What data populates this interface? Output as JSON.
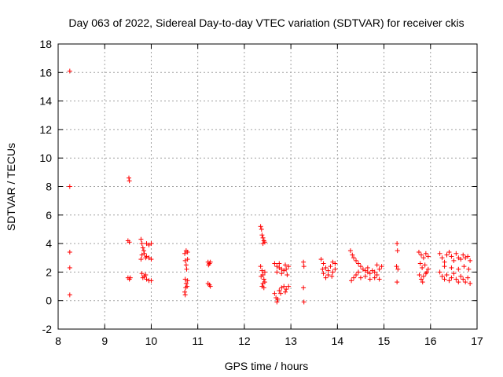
{
  "chart_data": {
    "type": "scatter",
    "title": "Day 063 of 2022, Sidereal Day-to-day VTEC variation (SDTVAR) for receiver ckis",
    "xlabel": "GPS time / hours",
    "ylabel": "SDTVAR / TECUs",
    "xlim": [
      8,
      17
    ],
    "ylim": [
      -2,
      18
    ],
    "xticks": [
      "8",
      "9",
      "10",
      "11",
      "12",
      "13",
      "14",
      "15",
      "16",
      "17"
    ],
    "yticks": [
      "-2",
      "0",
      "2",
      "4",
      "6",
      "8",
      "10",
      "12",
      "14",
      "16",
      "18"
    ],
    "grid": true,
    "marker": "+",
    "marker_color": "#ff0000",
    "series": [
      {
        "name": "SDTVAR",
        "points": [
          [
            8.25,
            16.1
          ],
          [
            8.25,
            8.0
          ],
          [
            8.25,
            3.4
          ],
          [
            8.25,
            2.3
          ],
          [
            8.25,
            0.4
          ],
          [
            9.52,
            8.6
          ],
          [
            9.53,
            8.4
          ],
          [
            9.5,
            4.2
          ],
          [
            9.53,
            4.1
          ],
          [
            9.5,
            1.6
          ],
          [
            9.53,
            1.5
          ],
          [
            9.55,
            1.6
          ],
          [
            9.78,
            4.3
          ],
          [
            9.8,
            4.0
          ],
          [
            9.82,
            3.7
          ],
          [
            9.85,
            3.3
          ],
          [
            9.88,
            3.0
          ],
          [
            9.8,
            3.2
          ],
          [
            9.78,
            2.9
          ],
          [
            9.84,
            3.5
          ],
          [
            9.9,
            4.0
          ],
          [
            9.95,
            3.9
          ],
          [
            10.0,
            4.0
          ],
          [
            9.95,
            3.0
          ],
          [
            10.0,
            2.9
          ],
          [
            9.9,
            3.1
          ],
          [
            9.8,
            1.9
          ],
          [
            9.82,
            1.6
          ],
          [
            9.85,
            1.7
          ],
          [
            9.9,
            1.5
          ],
          [
            9.95,
            1.4
          ],
          [
            10.0,
            1.4
          ],
          [
            9.88,
            1.8
          ],
          [
            10.72,
            3.3
          ],
          [
            10.75,
            3.5
          ],
          [
            10.78,
            3.4
          ],
          [
            10.73,
            2.8
          ],
          [
            10.75,
            2.5
          ],
          [
            10.76,
            2.2
          ],
          [
            10.78,
            2.9
          ],
          [
            10.73,
            1.5
          ],
          [
            10.75,
            1.2
          ],
          [
            10.74,
            0.9
          ],
          [
            10.72,
            0.6
          ],
          [
            10.73,
            0.4
          ],
          [
            10.77,
            1.0
          ],
          [
            10.78,
            1.4
          ],
          [
            11.22,
            2.7
          ],
          [
            11.25,
            2.6
          ],
          [
            11.27,
            2.7
          ],
          [
            11.23,
            2.5
          ],
          [
            11.22,
            1.2
          ],
          [
            11.25,
            1.1
          ],
          [
            11.27,
            1.0
          ],
          [
            12.35,
            5.2
          ],
          [
            12.37,
            5.0
          ],
          [
            12.38,
            4.6
          ],
          [
            12.4,
            4.4
          ],
          [
            12.42,
            4.2
          ],
          [
            12.44,
            4.1
          ],
          [
            12.4,
            4.0
          ],
          [
            12.35,
            2.4
          ],
          [
            12.38,
            2.1
          ],
          [
            12.4,
            1.8
          ],
          [
            12.42,
            1.5
          ],
          [
            12.4,
            1.2
          ],
          [
            12.38,
            1.0
          ],
          [
            12.42,
            0.9
          ],
          [
            12.44,
            1.3
          ],
          [
            12.36,
            1.7
          ],
          [
            12.44,
            2.0
          ],
          [
            12.65,
            2.6
          ],
          [
            12.7,
            2.4
          ],
          [
            12.75,
            2.3
          ],
          [
            12.8,
            2.2
          ],
          [
            12.85,
            2.1
          ],
          [
            12.9,
            2.2
          ],
          [
            12.95,
            2.4
          ],
          [
            12.7,
            2.0
          ],
          [
            12.8,
            1.9
          ],
          [
            12.92,
            1.8
          ],
          [
            12.75,
            2.6
          ],
          [
            12.88,
            2.5
          ],
          [
            12.65,
            0.5
          ],
          [
            12.68,
            0.2
          ],
          [
            12.7,
            -0.1
          ],
          [
            12.72,
            0.1
          ],
          [
            12.75,
            0.7
          ],
          [
            12.8,
            0.9
          ],
          [
            12.85,
            1.0
          ],
          [
            12.9,
            0.8
          ],
          [
            12.95,
            1.0
          ],
          [
            12.78,
            0.5
          ],
          [
            12.88,
            0.6
          ],
          [
            13.27,
            2.7
          ],
          [
            13.28,
            2.4
          ],
          [
            13.27,
            0.9
          ],
          [
            13.28,
            -0.1
          ],
          [
            13.65,
            2.9
          ],
          [
            13.7,
            2.6
          ],
          [
            13.75,
            2.3
          ],
          [
            13.8,
            2.1
          ],
          [
            13.85,
            2.4
          ],
          [
            13.9,
            2.7
          ],
          [
            13.95,
            2.2
          ],
          [
            13.7,
            1.9
          ],
          [
            13.75,
            1.6
          ],
          [
            13.8,
            1.8
          ],
          [
            13.9,
            2.0
          ],
          [
            13.68,
            2.2
          ],
          [
            13.88,
            1.7
          ],
          [
            13.95,
            2.6
          ],
          [
            14.28,
            3.5
          ],
          [
            14.32,
            3.2
          ],
          [
            14.35,
            3.0
          ],
          [
            14.4,
            2.8
          ],
          [
            14.45,
            2.6
          ],
          [
            14.5,
            2.4
          ],
          [
            14.55,
            2.2
          ],
          [
            14.6,
            2.1
          ],
          [
            14.65,
            2.0
          ],
          [
            14.7,
            1.9
          ],
          [
            14.75,
            2.1
          ],
          [
            14.8,
            2.0
          ],
          [
            14.85,
            1.8
          ],
          [
            14.9,
            2.2
          ],
          [
            14.95,
            2.4
          ],
          [
            14.3,
            1.4
          ],
          [
            14.35,
            1.6
          ],
          [
            14.4,
            1.8
          ],
          [
            14.5,
            1.6
          ],
          [
            14.6,
            1.7
          ],
          [
            14.7,
            1.5
          ],
          [
            14.8,
            1.6
          ],
          [
            14.9,
            1.5
          ],
          [
            14.45,
            2.0
          ],
          [
            14.65,
            2.3
          ],
          [
            14.85,
            2.5
          ],
          [
            15.28,
            4.0
          ],
          [
            15.29,
            3.5
          ],
          [
            15.27,
            2.4
          ],
          [
            15.3,
            2.2
          ],
          [
            15.28,
            1.3
          ],
          [
            15.75,
            3.4
          ],
          [
            15.8,
            3.2
          ],
          [
            15.85,
            3.0
          ],
          [
            15.9,
            3.3
          ],
          [
            15.95,
            3.1
          ],
          [
            15.78,
            2.6
          ],
          [
            15.82,
            2.3
          ],
          [
            15.88,
            2.5
          ],
          [
            15.92,
            2.0
          ],
          [
            15.76,
            1.8
          ],
          [
            15.8,
            1.5
          ],
          [
            15.85,
            1.7
          ],
          [
            15.9,
            1.9
          ],
          [
            15.95,
            2.2
          ],
          [
            15.83,
            1.3
          ],
          [
            16.2,
            3.3
          ],
          [
            16.25,
            3.0
          ],
          [
            16.3,
            2.7
          ],
          [
            16.35,
            3.2
          ],
          [
            16.4,
            3.4
          ],
          [
            16.45,
            3.1
          ],
          [
            16.5,
            2.8
          ],
          [
            16.55,
            3.3
          ],
          [
            16.6,
            3.0
          ],
          [
            16.65,
            2.9
          ],
          [
            16.7,
            3.2
          ],
          [
            16.75,
            3.0
          ],
          [
            16.8,
            3.1
          ],
          [
            16.85,
            2.8
          ],
          [
            16.2,
            2.0
          ],
          [
            16.25,
            1.7
          ],
          [
            16.3,
            1.5
          ],
          [
            16.35,
            1.8
          ],
          [
            16.4,
            1.4
          ],
          [
            16.45,
            1.6
          ],
          [
            16.5,
            1.9
          ],
          [
            16.55,
            1.5
          ],
          [
            16.6,
            1.3
          ],
          [
            16.65,
            1.7
          ],
          [
            16.7,
            1.5
          ],
          [
            16.75,
            1.3
          ],
          [
            16.8,
            1.6
          ],
          [
            16.85,
            1.2
          ],
          [
            16.3,
            2.4
          ],
          [
            16.45,
            2.3
          ],
          [
            16.6,
            2.2
          ],
          [
            16.72,
            2.4
          ],
          [
            16.82,
            2.2
          ]
        ]
      }
    ]
  }
}
